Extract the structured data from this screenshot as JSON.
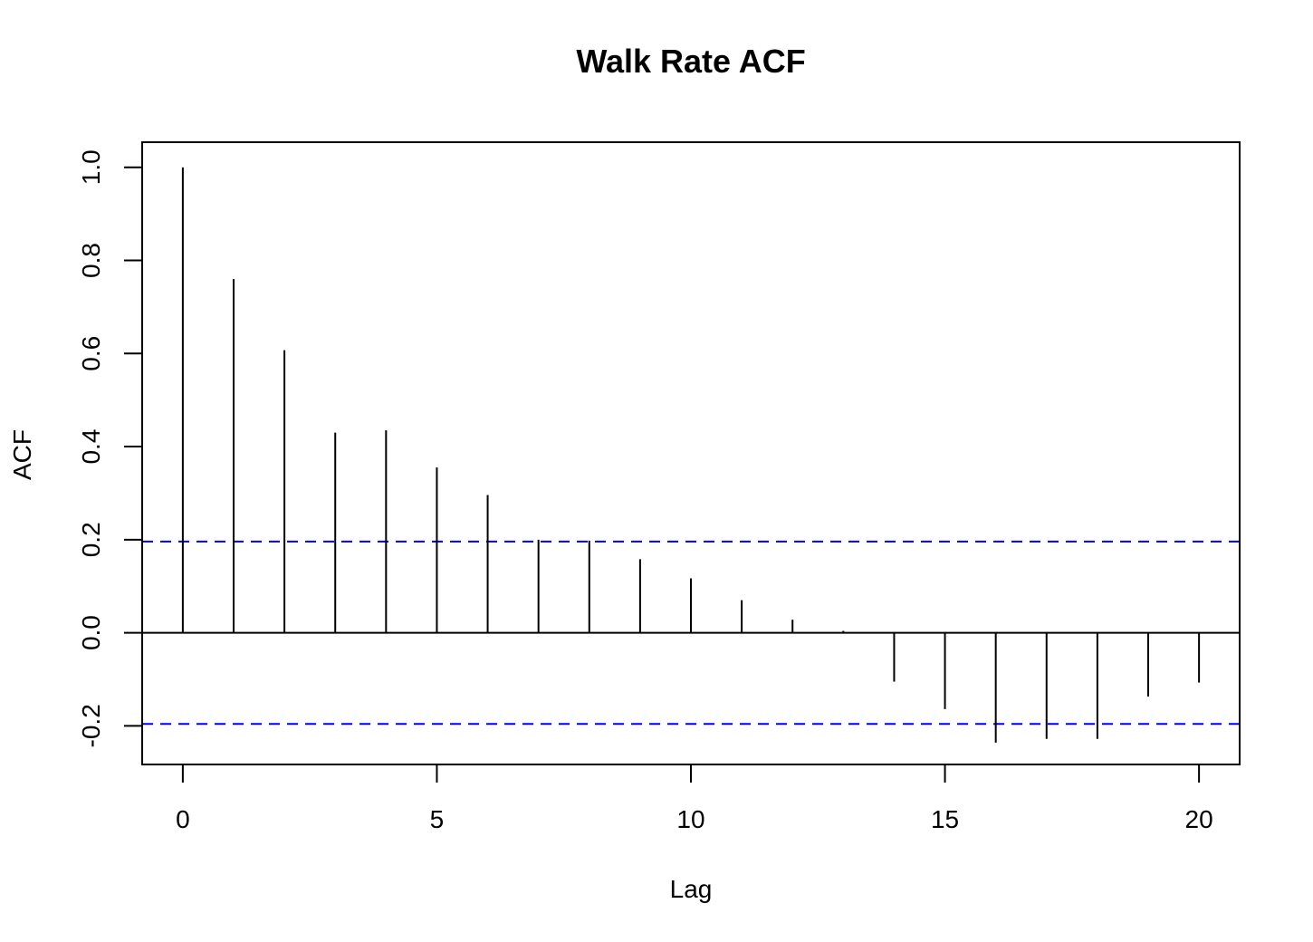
{
  "chart_data": {
    "type": "bar",
    "title": "Walk Rate ACF",
    "xlabel": "Lag",
    "ylabel": "ACF",
    "x": [
      0,
      1,
      2,
      3,
      4,
      5,
      6,
      7,
      8,
      9,
      10,
      11,
      12,
      13,
      14,
      15,
      16,
      17,
      18,
      19,
      20
    ],
    "values": [
      1.0,
      0.76,
      0.607,
      0.43,
      0.435,
      0.355,
      0.296,
      0.2,
      0.198,
      0.158,
      0.117,
      0.07,
      0.028,
      0.004,
      -0.105,
      -0.164,
      -0.236,
      -0.228,
      -0.228,
      -0.137,
      -0.107
    ],
    "confidence_bound": 0.196,
    "xlim": [
      -0.8,
      20.8
    ],
    "ylim": [
      -0.283,
      1.054
    ],
    "xticks": [
      0,
      5,
      10,
      15,
      20
    ],
    "xtick_labels": [
      "0",
      "5",
      "10",
      "15",
      "20"
    ],
    "yticks": [
      -0.2,
      0.0,
      0.2,
      0.4,
      0.6,
      0.8,
      1.0
    ],
    "ytick_labels": [
      "-0.2",
      "0.0",
      "0.2",
      "0.4",
      "0.6",
      "0.8",
      "1.0"
    ],
    "grid": false,
    "colors": {
      "bars": "#000000",
      "confidence": "#0000ff",
      "zero_line": "#000000"
    }
  }
}
